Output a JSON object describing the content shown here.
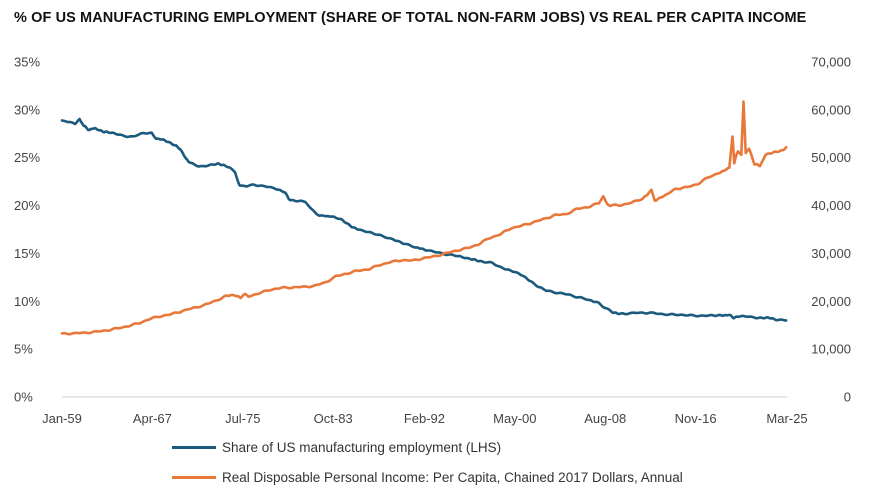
{
  "chart_data": {
    "type": "line",
    "title": "% OF US MANUFACTURING EMPLOYMENT (SHARE OF TOTAL NON-FARM JOBS) VS REAL PER CAPITA INCOME",
    "x_ticks": [
      {
        "label": "Jan-59",
        "value": 1959.0
      },
      {
        "label": "Apr-67",
        "value": 1967.25
      },
      {
        "label": "Jul-75",
        "value": 1975.5
      },
      {
        "label": "Oct-83",
        "value": 1983.75
      },
      {
        "label": "Feb-92",
        "value": 1992.08
      },
      {
        "label": "May-00",
        "value": 2000.33
      },
      {
        "label": "Aug-08",
        "value": 2008.58
      },
      {
        "label": "Nov-16",
        "value": 2016.83
      },
      {
        "label": "Mar-25",
        "value": 2025.17
      }
    ],
    "xlim": [
      1959.0,
      2025.17
    ],
    "y_left": {
      "ylim": [
        0,
        35
      ],
      "ticks": [
        0,
        5,
        10,
        15,
        20,
        25,
        30,
        35
      ],
      "tick_labels": [
        "0%",
        "5%",
        "10%",
        "15%",
        "20%",
        "25%",
        "30%",
        "35%"
      ]
    },
    "y_right": {
      "ylim": [
        0,
        70000
      ],
      "ticks": [
        0,
        10000,
        20000,
        30000,
        40000,
        50000,
        60000,
        70000
      ],
      "tick_labels": [
        "0",
        "10,000",
        "20,000",
        "30,000",
        "40,000",
        "50,000",
        "60,000",
        "70,000"
      ]
    },
    "grid": false,
    "series": [
      {
        "name": "Share of US manufacturing employment (LHS)",
        "axis": "left",
        "color": "#1b5a7d",
        "points": [
          [
            1959.0,
            28.9
          ],
          [
            1959.6,
            28.7
          ],
          [
            1960.2,
            28.6
          ],
          [
            1960.6,
            29.0
          ],
          [
            1961.0,
            28.3
          ],
          [
            1961.5,
            27.9
          ],
          [
            1962.0,
            28.1
          ],
          [
            1962.5,
            27.8
          ],
          [
            1963.0,
            27.7
          ],
          [
            1963.8,
            27.5
          ],
          [
            1964.5,
            27.3
          ],
          [
            1965.5,
            27.2
          ],
          [
            1966.5,
            27.6
          ],
          [
            1967.2,
            27.6
          ],
          [
            1967.6,
            27.0
          ],
          [
            1968.5,
            26.8
          ],
          [
            1969.3,
            26.3
          ],
          [
            1969.8,
            25.9
          ],
          [
            1970.3,
            24.9
          ],
          [
            1970.8,
            24.4
          ],
          [
            1971.5,
            24.1
          ],
          [
            1972.5,
            24.2
          ],
          [
            1973.3,
            24.4
          ],
          [
            1974.2,
            24.0
          ],
          [
            1974.8,
            23.5
          ],
          [
            1975.2,
            22.1
          ],
          [
            1975.8,
            22.0
          ],
          [
            1976.5,
            22.2
          ],
          [
            1977.5,
            22.0
          ],
          [
            1978.5,
            21.8
          ],
          [
            1979.3,
            21.4
          ],
          [
            1979.8,
            20.6
          ],
          [
            1980.5,
            20.5
          ],
          [
            1981.2,
            20.4
          ],
          [
            1981.8,
            19.6
          ],
          [
            1982.5,
            18.9
          ],
          [
            1983.2,
            18.9
          ],
          [
            1983.8,
            18.8
          ],
          [
            1984.5,
            18.5
          ],
          [
            1985.3,
            17.9
          ],
          [
            1986.2,
            17.4
          ],
          [
            1987.2,
            17.2
          ],
          [
            1988.2,
            16.8
          ],
          [
            1989.2,
            16.5
          ],
          [
            1990.3,
            16.0
          ],
          [
            1991.3,
            15.6
          ],
          [
            1992.2,
            15.4
          ],
          [
            1993.2,
            15.1
          ],
          [
            1994.2,
            14.9
          ],
          [
            1995.2,
            14.7
          ],
          [
            1996.3,
            14.4
          ],
          [
            1997.2,
            14.2
          ],
          [
            1998.2,
            14.0
          ],
          [
            1999.2,
            13.5
          ],
          [
            2000.3,
            13.1
          ],
          [
            2001.0,
            12.7
          ],
          [
            2001.8,
            12.1
          ],
          [
            2002.5,
            11.5
          ],
          [
            2003.2,
            11.1
          ],
          [
            2004.2,
            10.9
          ],
          [
            2005.2,
            10.7
          ],
          [
            2006.2,
            10.4
          ],
          [
            2007.2,
            10.1
          ],
          [
            2008.0,
            9.8
          ],
          [
            2008.6,
            9.3
          ],
          [
            2009.3,
            8.8
          ],
          [
            2010.2,
            8.7
          ],
          [
            2011.5,
            8.8
          ],
          [
            2012.5,
            8.8
          ],
          [
            2013.5,
            8.7
          ],
          [
            2014.5,
            8.6
          ],
          [
            2015.5,
            8.6
          ],
          [
            2016.5,
            8.5
          ],
          [
            2017.5,
            8.5
          ],
          [
            2018.5,
            8.5
          ],
          [
            2019.3,
            8.5
          ],
          [
            2019.8,
            8.6
          ],
          [
            2020.3,
            8.3
          ],
          [
            2020.8,
            8.4
          ],
          [
            2021.5,
            8.4
          ],
          [
            2022.5,
            8.3
          ],
          [
            2023.3,
            8.3
          ],
          [
            2024.2,
            8.1
          ],
          [
            2024.8,
            8.0
          ],
          [
            2025.1,
            8.0
          ]
        ]
      },
      {
        "name": "Real Disposable Personal Income: Per Capita, Chained 2017 Dollars, Annual",
        "axis": "right",
        "color": "#e8783a",
        "points": [
          [
            1959.0,
            13200
          ],
          [
            1960.0,
            13300
          ],
          [
            1961.0,
            13400
          ],
          [
            1962.0,
            13600
          ],
          [
            1963.0,
            13900
          ],
          [
            1964.0,
            14300
          ],
          [
            1965.0,
            14800
          ],
          [
            1966.0,
            15400
          ],
          [
            1967.0,
            16300
          ],
          [
            1968.0,
            16900
          ],
          [
            1969.0,
            17300
          ],
          [
            1970.0,
            18000
          ],
          [
            1971.0,
            18600
          ],
          [
            1972.0,
            19200
          ],
          [
            1973.0,
            20100
          ],
          [
            1974.0,
            21100
          ],
          [
            1974.8,
            21300
          ],
          [
            1975.3,
            20700
          ],
          [
            1975.7,
            21500
          ],
          [
            1976.0,
            21000
          ],
          [
            1977.0,
            21700
          ],
          [
            1978.0,
            22400
          ],
          [
            1979.0,
            22800
          ],
          [
            1980.0,
            22900
          ],
          [
            1981.0,
            23000
          ],
          [
            1982.0,
            23200
          ],
          [
            1983.0,
            23900
          ],
          [
            1984.0,
            25200
          ],
          [
            1985.0,
            25800
          ],
          [
            1986.0,
            26400
          ],
          [
            1987.0,
            26700
          ],
          [
            1988.0,
            27600
          ],
          [
            1989.0,
            28200
          ],
          [
            1990.0,
            28600
          ],
          [
            1991.0,
            28500
          ],
          [
            1992.0,
            29000
          ],
          [
            1993.0,
            29400
          ],
          [
            1994.0,
            30000
          ],
          [
            1995.0,
            30600
          ],
          [
            1996.0,
            31100
          ],
          [
            1997.0,
            31900
          ],
          [
            1998.0,
            33200
          ],
          [
            1999.0,
            34000
          ],
          [
            2000.0,
            35300
          ],
          [
            2001.0,
            35800
          ],
          [
            2002.0,
            36500
          ],
          [
            2003.0,
            37200
          ],
          [
            2004.0,
            38000
          ],
          [
            2005.0,
            38200
          ],
          [
            2006.0,
            39300
          ],
          [
            2007.0,
            39700
          ],
          [
            2008.0,
            40500
          ],
          [
            2008.4,
            41800
          ],
          [
            2008.8,
            40200
          ],
          [
            2009.0,
            40000
          ],
          [
            2010.0,
            40100
          ],
          [
            2011.0,
            40600
          ],
          [
            2012.0,
            41500
          ],
          [
            2012.8,
            43200
          ],
          [
            2013.1,
            41100
          ],
          [
            2014.0,
            42000
          ],
          [
            2015.0,
            43500
          ],
          [
            2016.0,
            43800
          ],
          [
            2017.0,
            44500
          ],
          [
            2018.0,
            45900
          ],
          [
            2019.0,
            46900
          ],
          [
            2019.9,
            47800
          ],
          [
            2020.2,
            54500
          ],
          [
            2020.35,
            49000
          ],
          [
            2020.7,
            51500
          ],
          [
            2021.0,
            50600
          ],
          [
            2021.2,
            61800
          ],
          [
            2021.4,
            51000
          ],
          [
            2021.7,
            51900
          ],
          [
            2022.2,
            48700
          ],
          [
            2022.7,
            48300
          ],
          [
            2023.2,
            50500
          ],
          [
            2024.0,
            51200
          ],
          [
            2024.8,
            51600
          ],
          [
            2025.1,
            52200
          ]
        ]
      }
    ]
  }
}
